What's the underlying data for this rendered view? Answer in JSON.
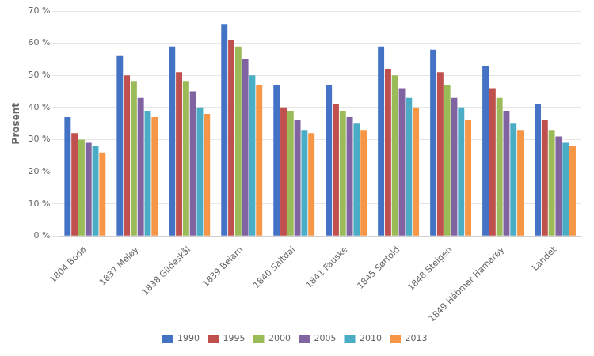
{
  "chart_data": {
    "type": "bar",
    "categories": [
      "1804 Bodø",
      "1837 Meløy",
      "1838 Gildeskål",
      "1839 Beiarn",
      "1840 Saltdal",
      "1841 Fauske",
      "1845 Sørfold",
      "1848 Steigen",
      "1849 Hábmer Hamarøy",
      "Landet"
    ],
    "series": [
      {
        "name": "1990",
        "color": "#4472C4",
        "values": [
          37,
          56,
          59,
          66,
          47,
          47,
          59,
          58,
          53,
          41
        ]
      },
      {
        "name": "1995",
        "color": "#C0504D",
        "values": [
          32,
          50,
          51,
          61,
          40,
          41,
          52,
          51,
          46,
          36
        ]
      },
      {
        "name": "2000",
        "color": "#9BBB59",
        "values": [
          30,
          48,
          48,
          59,
          39,
          39,
          50,
          47,
          43,
          33
        ]
      },
      {
        "name": "2005",
        "color": "#8064A2",
        "values": [
          29,
          43,
          45,
          55,
          36,
          37,
          46,
          43,
          39,
          31
        ]
      },
      {
        "name": "2010",
        "color": "#4BACC6",
        "values": [
          28,
          39,
          40,
          50,
          33,
          35,
          43,
          40,
          35,
          29
        ]
      },
      {
        "name": "2013",
        "color": "#F79646",
        "values": [
          26,
          37,
          38,
          47,
          32,
          33,
          40,
          36,
          33,
          28
        ]
      }
    ],
    "ylabel": "Prosent",
    "ylim": [
      0,
      70
    ],
    "yticks": [
      {
        "value": 0,
        "label": "0 %"
      },
      {
        "value": 10,
        "label": "10 %"
      },
      {
        "value": 20,
        "label": "20 %"
      },
      {
        "value": 30,
        "label": "30 %"
      },
      {
        "value": 40,
        "label": "40 %"
      },
      {
        "value": 50,
        "label": "50 %"
      },
      {
        "value": 60,
        "label": "60 %"
      },
      {
        "value": 70,
        "label": "70 %"
      }
    ],
    "grid": true,
    "legend": "bottom"
  }
}
